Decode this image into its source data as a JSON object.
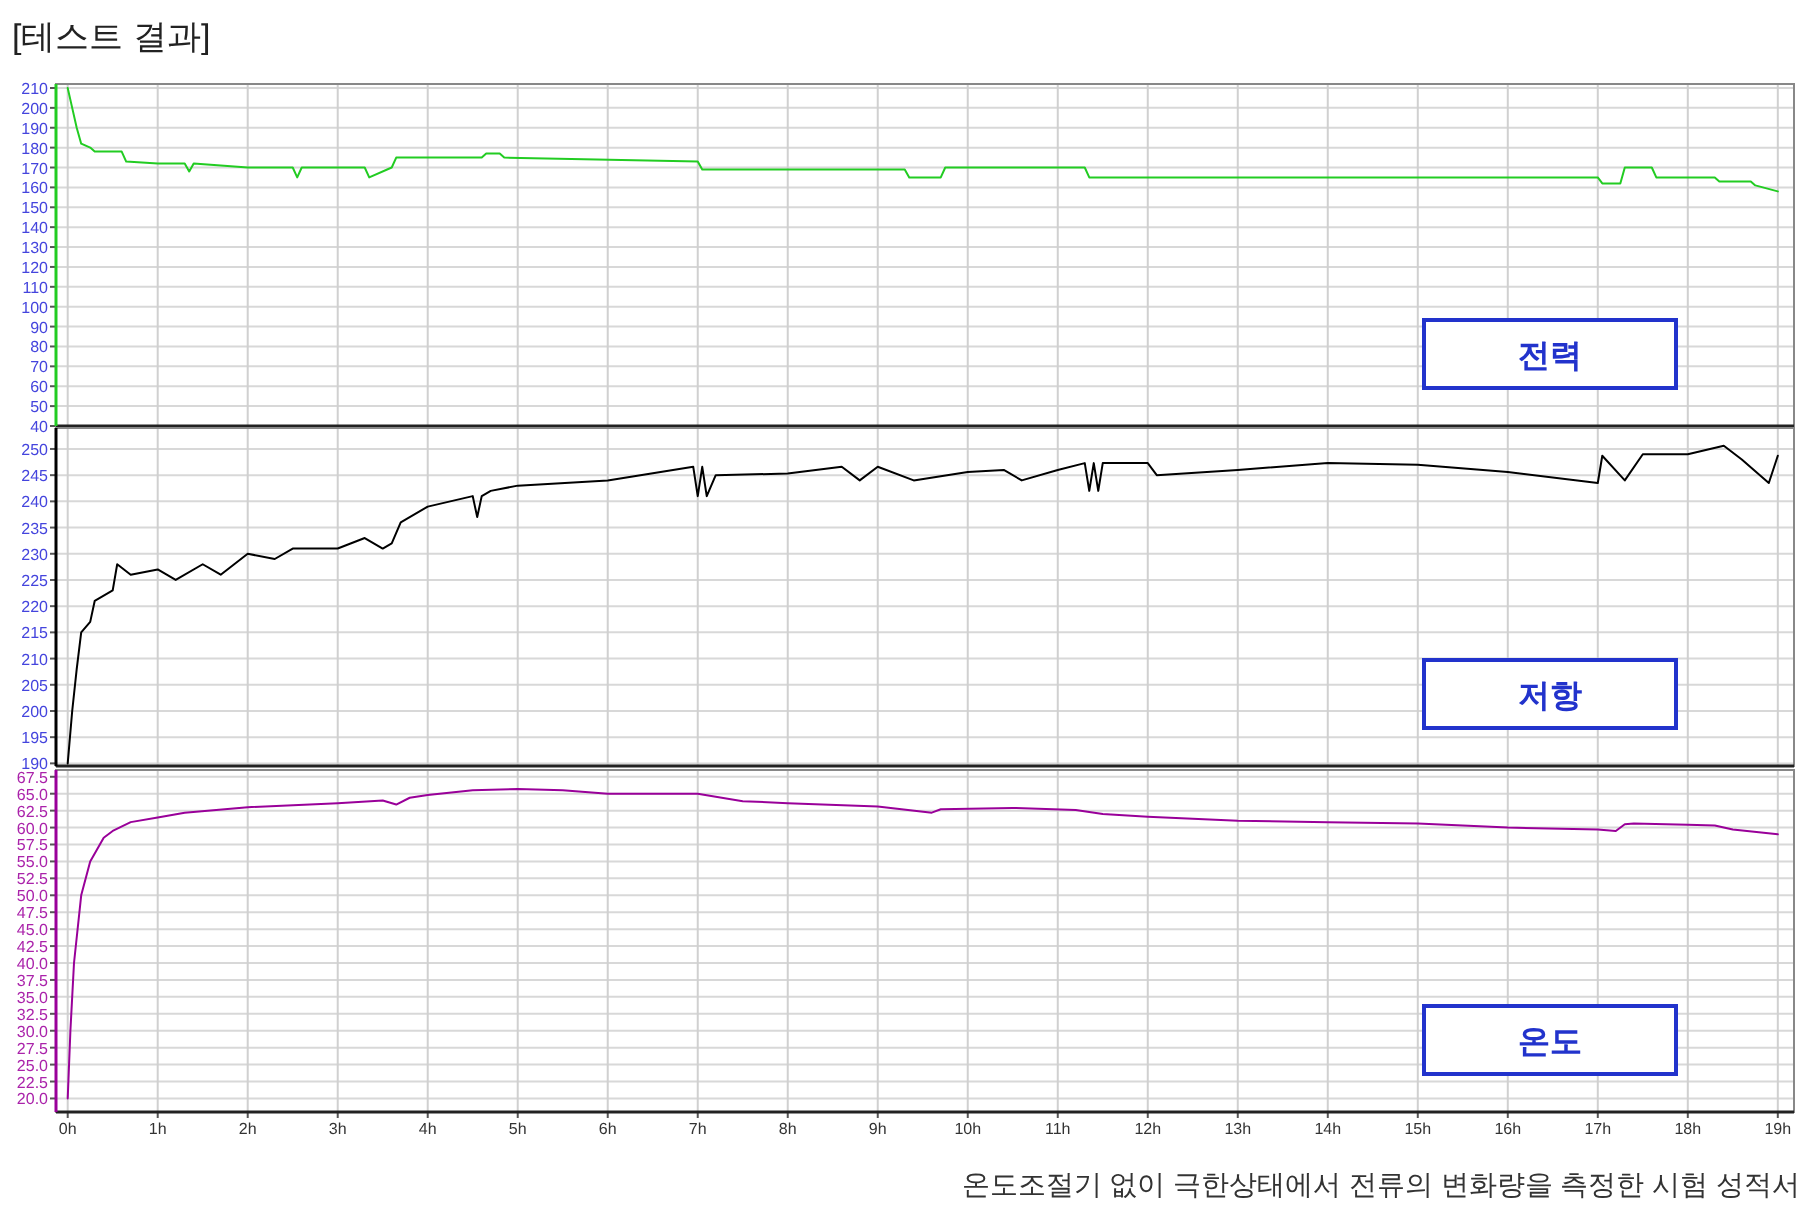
{
  "chart_data": [
    {
      "type": "line",
      "title": "[테스트 결과]",
      "annotations": [
        "전력"
      ],
      "color": "#22cc22",
      "grid": true,
      "tick_labels": "y",
      "xlim": [
        -0.13,
        19.18
      ],
      "ylim": [
        40,
        212
      ],
      "xticks": [
        0,
        1,
        2,
        3,
        4,
        5,
        6,
        7,
        8,
        9,
        10,
        11,
        12,
        13,
        14,
        15,
        16,
        17,
        18,
        19
      ],
      "yticks": [
        40,
        50,
        60,
        70,
        80,
        90,
        100,
        110,
        120,
        130,
        140,
        150,
        160,
        170,
        180,
        190,
        200,
        210
      ],
      "x": [
        0,
        0.05,
        0.1,
        0.15,
        0.25,
        0.3,
        0.6,
        0.65,
        1.0,
        1.3,
        1.35,
        1.4,
        2.0,
        2.5,
        2.55,
        2.6,
        3.0,
        3.3,
        3.35,
        3.6,
        3.65,
        4.6,
        4.65,
        4.8,
        4.85,
        7.0,
        7.05,
        9.3,
        9.35,
        9.7,
        9.75,
        11.3,
        11.35,
        13,
        15,
        17.0,
        17.05,
        17.25,
        17.3,
        17.6,
        17.65,
        18.3,
        18.35,
        18.7,
        18.75,
        19.0
      ],
      "values": [
        210,
        200,
        190,
        182,
        180,
        178,
        178,
        173,
        172,
        172,
        168,
        172,
        170,
        170,
        165,
        170,
        170,
        170,
        165,
        170,
        175,
        175,
        177,
        177,
        175,
        173,
        169,
        169,
        165,
        165,
        170,
        170,
        165,
        165,
        165,
        165,
        162,
        162,
        170,
        170,
        165,
        165,
        163,
        163,
        161,
        158
      ]
    },
    {
      "type": "line",
      "annotations": [
        "저항"
      ],
      "color": "#000000",
      "grid": true,
      "tick_labels": "y",
      "xlim": [
        -0.13,
        19.18
      ],
      "ylim": [
        189.5,
        254
      ],
      "xticks": [
        0,
        1,
        2,
        3,
        4,
        5,
        6,
        7,
        8,
        9,
        10,
        11,
        12,
        13,
        14,
        15,
        16,
        17,
        18,
        19
      ],
      "yticks": [
        190,
        195,
        200,
        205,
        210,
        215,
        220,
        225,
        230,
        235,
        240,
        245,
        250
      ],
      "x": [
        0,
        0.05,
        0.1,
        0.15,
        0.25,
        0.3,
        0.5,
        0.55,
        0.7,
        1.0,
        1.2,
        1.5,
        1.7,
        2.0,
        2.3,
        2.5,
        3.0,
        3.3,
        3.5,
        3.6,
        3.7,
        4.0,
        4.5,
        4.55,
        4.6,
        4.7,
        5.0,
        6.0,
        6.95,
        7.0,
        7.05,
        7.1,
        7.2,
        8.0,
        8.6,
        8.8,
        9.0,
        9.4,
        10.0,
        10.4,
        10.6,
        11.0,
        11.3,
        11.35,
        11.4,
        11.45,
        11.5,
        12.0,
        12.1,
        13.0,
        14.0,
        15.0,
        16.0,
        17.0,
        17.05,
        17.3,
        17.5,
        18.0,
        18.4,
        18.6,
        18.9,
        19.0
      ],
      "values": [
        190,
        200,
        208,
        215,
        217,
        221,
        223,
        228,
        226,
        227,
        225,
        228,
        226,
        230,
        229,
        231,
        231,
        233,
        231,
        232,
        236,
        239,
        241,
        237,
        241,
        242,
        243,
        244,
        246.6,
        241,
        246.6,
        241,
        245,
        245.3,
        246.6,
        244,
        246.6,
        244,
        245.6,
        246,
        244,
        246,
        247.3,
        242,
        247.3,
        242,
        247.3,
        247.3,
        245,
        246,
        247.3,
        247,
        245.6,
        243.5,
        248.7,
        244,
        249,
        249,
        250.6,
        248,
        243.5,
        248.7
      ]
    },
    {
      "type": "line",
      "annotations": [
        "온도",
        "온도조절기 없이 극한상태에서 전류의 변화량을 측정한 시험 성적서"
      ],
      "color": "#990099",
      "grid": true,
      "xlim": [
        -0.13,
        19.18
      ],
      "ylim": [
        18,
        68.5
      ],
      "xticks": [
        {
          "value": 0,
          "label": "0h"
        },
        {
          "value": 1,
          "label": "1h"
        },
        {
          "value": 2,
          "label": "2h"
        },
        {
          "value": 3,
          "label": "3h"
        },
        {
          "value": 4,
          "label": "4h"
        },
        {
          "value": 5,
          "label": "5h"
        },
        {
          "value": 6,
          "label": "6h"
        },
        {
          "value": 7,
          "label": "7h"
        },
        {
          "value": 8,
          "label": "8h"
        },
        {
          "value": 9,
          "label": "9h"
        },
        {
          "value": 10,
          "label": "10h"
        },
        {
          "value": 11,
          "label": "11h"
        },
        {
          "value": 12,
          "label": "12h"
        },
        {
          "value": 13,
          "label": "13h"
        },
        {
          "value": 14,
          "label": "14h"
        },
        {
          "value": 15,
          "label": "15h"
        },
        {
          "value": 16,
          "label": "16h"
        },
        {
          "value": 17,
          "label": "17h"
        },
        {
          "value": 18,
          "label": "18h"
        },
        {
          "value": 19,
          "label": "19h"
        }
      ],
      "yticks": [
        {
          "value": 20,
          "label": "20.0"
        },
        22.5,
        {
          "value": 25,
          "label": "25.0"
        },
        27.5,
        {
          "value": 30,
          "label": "30.0"
        },
        32.5,
        {
          "value": 35,
          "label": "35.0"
        },
        37.5,
        {
          "value": 40,
          "label": "40.0"
        },
        42.5,
        {
          "value": 45,
          "label": "45.0"
        },
        47.5,
        {
          "value": 50,
          "label": "50.0"
        },
        52.5,
        {
          "value": 55,
          "label": "55.0"
        },
        57.5,
        {
          "value": 60,
          "label": "60.0"
        },
        62.5,
        {
          "value": 65,
          "label": "65.0"
        },
        67.5
      ],
      "x": [
        0,
        0.03,
        0.07,
        0.15,
        0.25,
        0.4,
        0.5,
        0.7,
        1.0,
        1.3,
        2.0,
        3.0,
        3.5,
        3.65,
        3.8,
        4.0,
        4.5,
        5.0,
        5.5,
        6.0,
        7.0,
        7.5,
        8.0,
        9.0,
        9.6,
        9.7,
        10.5,
        11.2,
        11.5,
        12.0,
        13.0,
        14.0,
        15.0,
        16.0,
        17.0,
        17.2,
        17.3,
        17.4,
        18.0,
        18.3,
        18.5,
        19.0
      ],
      "values": [
        20,
        30,
        40,
        50,
        55,
        58.5,
        59.5,
        60.8,
        61.5,
        62.2,
        63,
        63.6,
        64,
        63.4,
        64.4,
        64.8,
        65.5,
        65.7,
        65.5,
        65,
        65,
        63.9,
        63.6,
        63.1,
        62.2,
        62.7,
        62.9,
        62.6,
        62,
        61.6,
        61,
        60.8,
        60.6,
        60,
        59.7,
        59.5,
        60.5,
        60.6,
        60.4,
        60.3,
        59.7,
        59
      ]
    }
  ]
}
